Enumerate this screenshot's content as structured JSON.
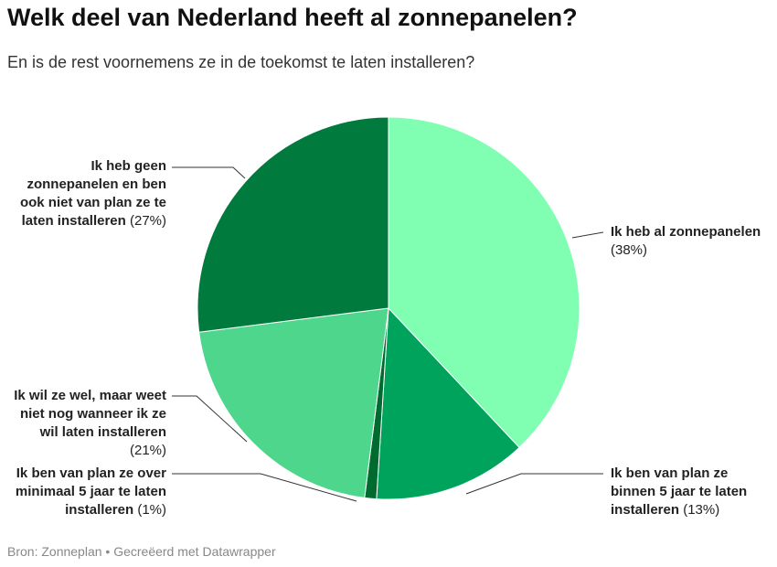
{
  "chart_data": {
    "type": "pie",
    "title": "Welk deel van Nederland heeft al zonnepanelen?",
    "subtitle": "En is de rest voornemens ze in de toekomst te laten installeren?",
    "categories": [
      "Ik heb al zonnepanelen",
      "Ik ben van plan ze binnen 5 jaar te laten installeren",
      "Ik ben van plan ze over minimaal 5 jaar te laten installeren",
      "Ik wil ze wel, maar weet niet nog wanneer ik ze wil laten installeren",
      "Ik heb geen zonnepanelen en ben ook niet van plan ze te laten installeren"
    ],
    "values": [
      38,
      13,
      1,
      21,
      27
    ],
    "value_labels": [
      "(38%)",
      "(13%)",
      "(1%)",
      "(21%)",
      "(27%)"
    ],
    "colors": [
      "#80ffb3",
      "#00a35c",
      "#006b2e",
      "#4dd68c",
      "#007a3d"
    ],
    "source": "Bron: Zonneplan • Gecreëerd met Datawrapper"
  }
}
